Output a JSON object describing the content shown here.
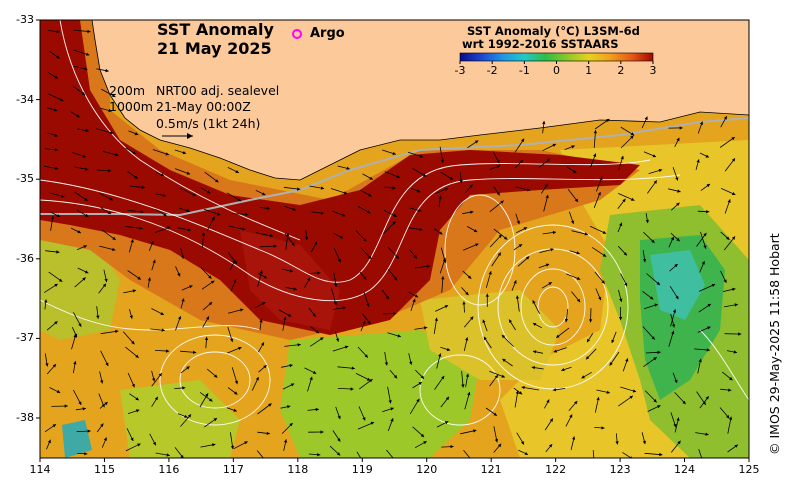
{
  "title": {
    "line1": "SST Anomaly",
    "line2": "21 May 2025"
  },
  "argo_legend": {
    "label": "Argo",
    "marker_color": "#ff00ff"
  },
  "colorbar": {
    "title_line1": "SST Anomaly (°C) L3SM-6d",
    "title_line2": "wrt 1992-2016 SSTAARS",
    "ticks": [
      "-3",
      "-2",
      "-1",
      "0",
      "1",
      "2",
      "3"
    ],
    "colors": [
      "#0a0a8c",
      "#1e46d2",
      "#1e96e6",
      "#23c8c8",
      "#2dbe46",
      "#8cc828",
      "#e6d21e",
      "#f0a01e",
      "#e65a14",
      "#a00a00"
    ]
  },
  "annotations": {
    "depth_200": "200m",
    "depth_1000": "1000m",
    "sealevel": "NRT00 adj. sealevel",
    "time": "21-May 00:00Z",
    "vector_scale": "0.5m/s (1kt 24h)"
  },
  "axes": {
    "x_ticks": [
      "114",
      "115",
      "116",
      "117",
      "118",
      "119",
      "120",
      "121",
      "122",
      "123",
      "124",
      "125"
    ],
    "y_ticks": [
      "-33",
      "-34",
      "-35",
      "-36",
      "-37",
      "-38"
    ]
  },
  "credit": "© IMOS 29-May-2025 11:58 Hobart",
  "colors": {
    "land": "#fcc99a",
    "warm_core": "#9a0a00",
    "background_anomaly": "#e6a020"
  }
}
